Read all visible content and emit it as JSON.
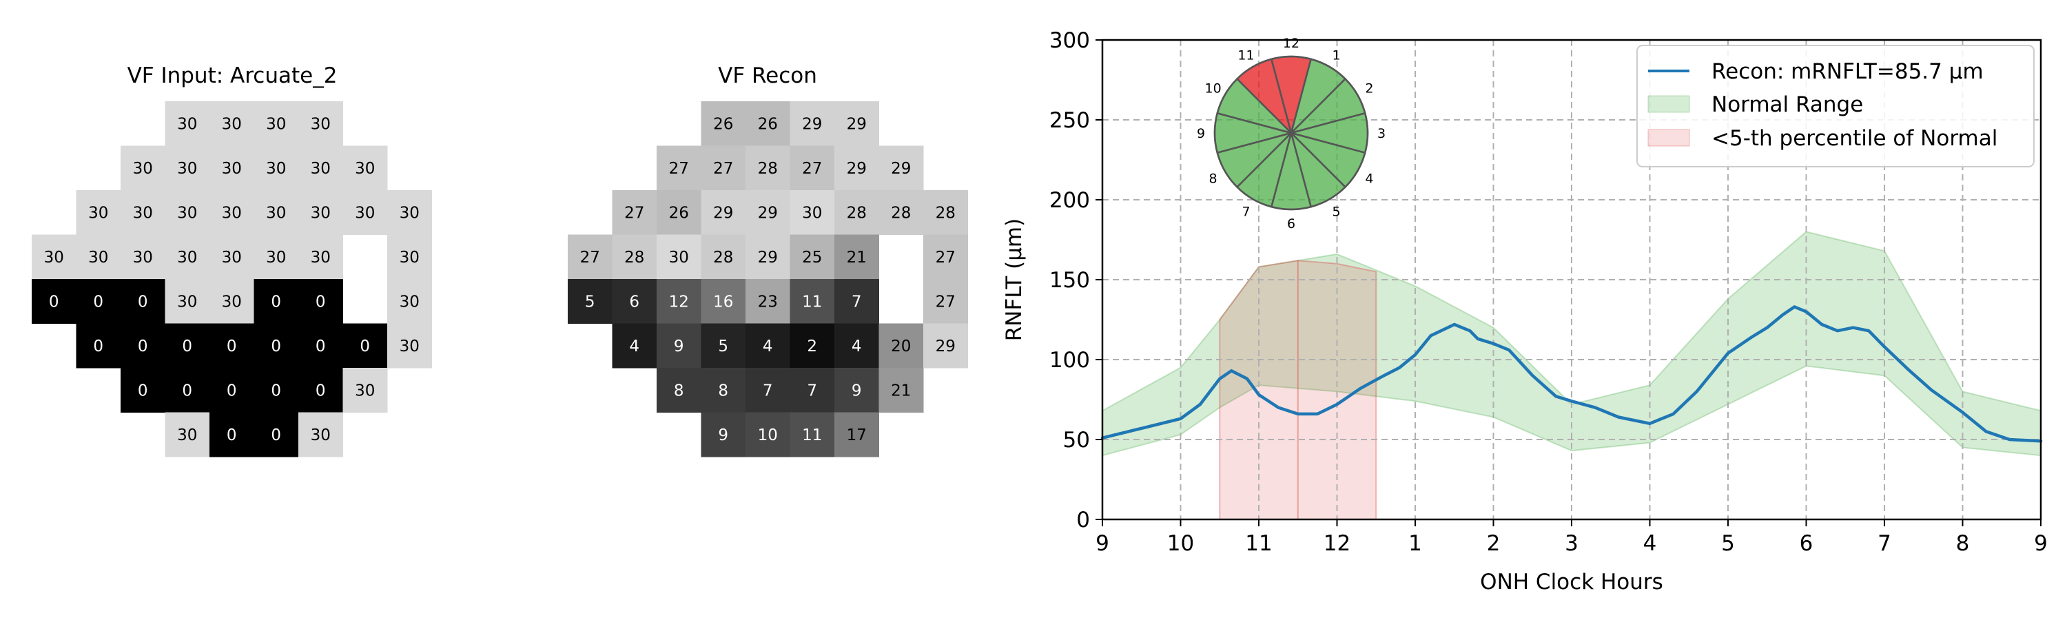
{
  "chart_data": [
    {
      "type": "heatmap",
      "title": "VF Input: Arcuate_2",
      "colormap": "grayscale",
      "value_range": [
        0,
        30
      ],
      "rows": [
        [
          null,
          null,
          null,
          30,
          30,
          30,
          30,
          null,
          null
        ],
        [
          null,
          null,
          30,
          30,
          30,
          30,
          30,
          30,
          null
        ],
        [
          null,
          30,
          30,
          30,
          30,
          30,
          30,
          30,
          30
        ],
        [
          30,
          30,
          30,
          30,
          30,
          30,
          30,
          null,
          30
        ],
        [
          0,
          0,
          0,
          30,
          30,
          0,
          0,
          null,
          30
        ],
        [
          null,
          0,
          0,
          0,
          0,
          0,
          0,
          0,
          30
        ],
        [
          null,
          null,
          0,
          0,
          0,
          0,
          0,
          30,
          null
        ],
        [
          null,
          null,
          null,
          30,
          0,
          0,
          30,
          null,
          null
        ]
      ]
    },
    {
      "type": "heatmap",
      "title": "VF Recon",
      "colormap": "grayscale",
      "value_range": [
        0,
        30
      ],
      "rows": [
        [
          null,
          null,
          null,
          26,
          26,
          29,
          29,
          null,
          null
        ],
        [
          null,
          null,
          27,
          27,
          28,
          27,
          29,
          29,
          null
        ],
        [
          null,
          27,
          26,
          29,
          29,
          30,
          28,
          28,
          28
        ],
        [
          27,
          28,
          30,
          28,
          29,
          25,
          21,
          null,
          27
        ],
        [
          5,
          6,
          12,
          16,
          23,
          11,
          7,
          null,
          27
        ],
        [
          null,
          4,
          9,
          5,
          4,
          2,
          4,
          20,
          29
        ],
        [
          null,
          null,
          8,
          8,
          7,
          7,
          9,
          21,
          null
        ],
        [
          null,
          null,
          null,
          9,
          10,
          11,
          17,
          null,
          null
        ]
      ]
    },
    {
      "type": "line",
      "xlabel": "ONH Clock Hours",
      "ylabel": "RNFLT (μm)",
      "ylim": [
        0,
        300
      ],
      "yticks": [
        0,
        50,
        100,
        150,
        200,
        250,
        300
      ],
      "xticks": [
        "9",
        "10",
        "11",
        "12",
        "1",
        "2",
        "3",
        "4",
        "5",
        "6",
        "7",
        "8",
        "9"
      ],
      "x_unit": "clock-hour steps from the left 9",
      "grid": true,
      "legend_position": "top-right",
      "legend": [
        "Recon: mRNFLT=85.7 μm",
        "Normal Range",
        "<5-th percentile of Normal"
      ],
      "series": [
        {
          "name": "Recon: mRNFLT=85.7 μm",
          "color": "#1f77b4",
          "points": [
            [
              0,
              51
            ],
            [
              0.5,
              57
            ],
            [
              1,
              63
            ],
            [
              1.25,
              72
            ],
            [
              1.5,
              88
            ],
            [
              1.65,
              93
            ],
            [
              1.85,
              88
            ],
            [
              2,
              78
            ],
            [
              2.25,
              70
            ],
            [
              2.5,
              66
            ],
            [
              2.75,
              66
            ],
            [
              3,
              72
            ],
            [
              3.3,
              82
            ],
            [
              3.6,
              90
            ],
            [
              3.8,
              95
            ],
            [
              4,
              103
            ],
            [
              4.2,
              115
            ],
            [
              4.5,
              122
            ],
            [
              4.7,
              118
            ],
            [
              4.8,
              113
            ],
            [
              5,
              110
            ],
            [
              5.2,
              106
            ],
            [
              5.5,
              90
            ],
            [
              5.8,
              77
            ],
            [
              6,
              74
            ],
            [
              6.3,
              70
            ],
            [
              6.6,
              64
            ],
            [
              7,
              60
            ],
            [
              7.3,
              66
            ],
            [
              7.6,
              80
            ],
            [
              8,
              104
            ],
            [
              8.3,
              114
            ],
            [
              8.5,
              120
            ],
            [
              8.7,
              128
            ],
            [
              8.85,
              133
            ],
            [
              9,
              130
            ],
            [
              9.2,
              122
            ],
            [
              9.4,
              118
            ],
            [
              9.6,
              120
            ],
            [
              9.8,
              118
            ],
            [
              10,
              108
            ],
            [
              10.3,
              94
            ],
            [
              10.6,
              81
            ],
            [
              11,
              67
            ],
            [
              11.3,
              55
            ],
            [
              11.6,
              50
            ],
            [
              12,
              49
            ]
          ]
        }
      ],
      "normal_range": {
        "color": "#2ca02c",
        "upper": [
          [
            0,
            68
          ],
          [
            1,
            95
          ],
          [
            1.5,
            125
          ],
          [
            2,
            158
          ],
          [
            3,
            166
          ],
          [
            4,
            146
          ],
          [
            5,
            120
          ],
          [
            6,
            72
          ],
          [
            7,
            84
          ],
          [
            8,
            138
          ],
          [
            9,
            180
          ],
          [
            10,
            168
          ],
          [
            11,
            80
          ],
          [
            12,
            68
          ]
        ],
        "lower": [
          [
            0,
            40
          ],
          [
            1,
            53
          ],
          [
            1.5,
            70
          ],
          [
            2,
            84
          ],
          [
            3,
            80
          ],
          [
            4,
            74
          ],
          [
            5,
            64
          ],
          [
            6,
            43
          ],
          [
            7,
            48
          ],
          [
            8,
            72
          ],
          [
            9,
            96
          ],
          [
            10,
            90
          ],
          [
            11,
            45
          ],
          [
            12,
            40
          ]
        ]
      },
      "below_5th_percentile": {
        "color": "#d62728",
        "x_range": [
          1.5,
          3.5
        ],
        "upper": [
          [
            1.5,
            125
          ],
          [
            2,
            158
          ],
          [
            2.5,
            162
          ],
          [
            3,
            160
          ],
          [
            3.5,
            155
          ]
        ],
        "lower": [
          [
            1.5,
            125
          ],
          [
            2,
            84
          ],
          [
            2.5,
            82
          ],
          [
            3,
            80
          ],
          [
            3.5,
            78
          ]
        ]
      },
      "inset_clock": {
        "labels": [
          "12",
          "1",
          "2",
          "3",
          "4",
          "5",
          "6",
          "7",
          "8",
          "9",
          "10",
          "11"
        ],
        "sector_count": 12,
        "abnormal_sectors": [
          "11",
          "12"
        ],
        "normal_color": "#4daf4a",
        "abnormal_color": "#e41a1c"
      }
    }
  ]
}
